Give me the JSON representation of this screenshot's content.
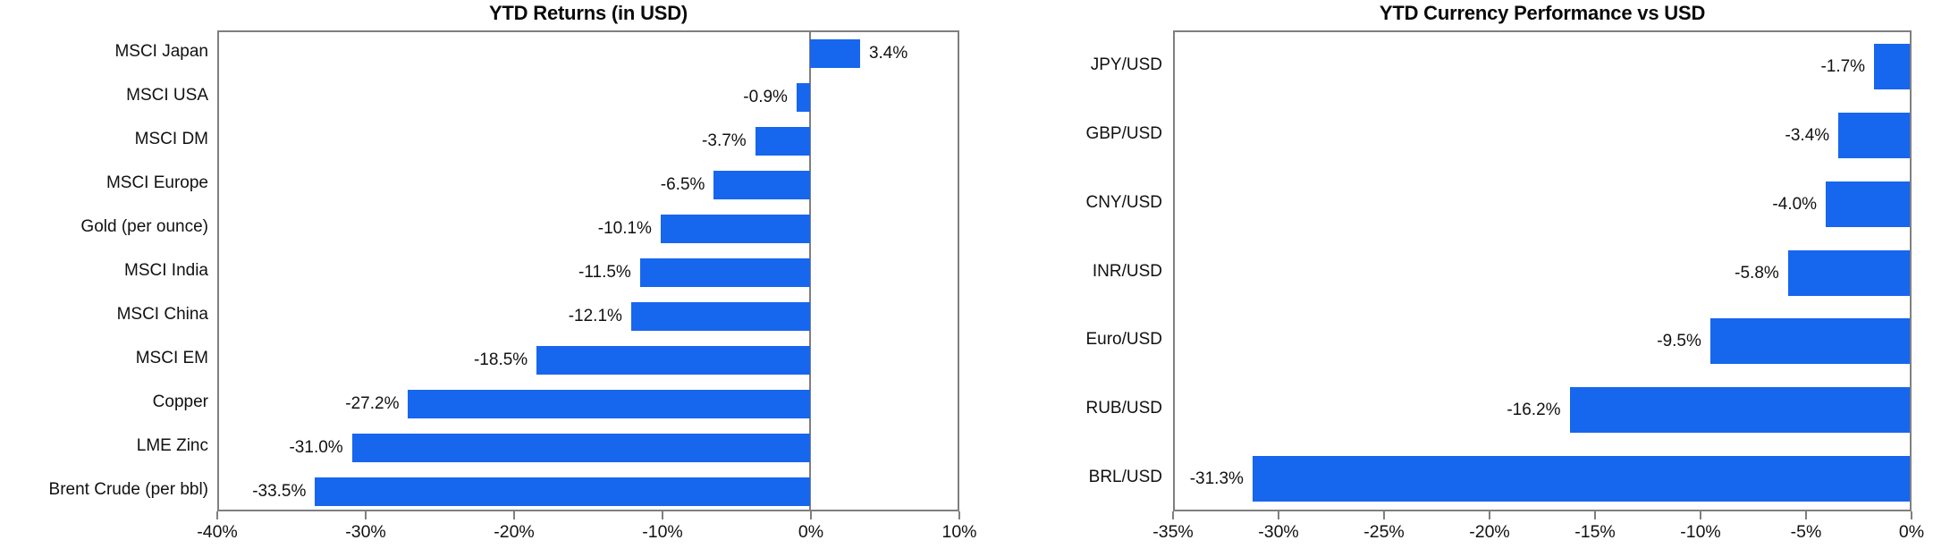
{
  "figure": {
    "background": "#ffffff",
    "text_color": "#111111",
    "axis_color": "#7f7f7f"
  },
  "chart_data": [
    {
      "type": "bar",
      "orientation": "horizontal",
      "title": "YTD Returns (in USD)",
      "categories": [
        "MSCI Japan",
        "MSCI USA",
        "MSCI DM",
        "MSCI Europe",
        "Gold (per ounce)",
        "MSCI India",
        "MSCI China",
        "MSCI EM",
        "Copper",
        "LME Zinc",
        "Brent Crude (per bbl)"
      ],
      "values": [
        3.4,
        -0.9,
        -3.7,
        -6.5,
        -10.1,
        -11.5,
        -12.1,
        -18.5,
        -27.2,
        -31.0,
        -33.5
      ],
      "data_labels": [
        "3.4%",
        "-0.9%",
        "-3.7%",
        "-6.5%",
        "-10.1%",
        "-11.5%",
        "-12.1%",
        "-18.5%",
        "-27.2%",
        "-31.0%",
        "-33.5%"
      ],
      "xlim": [
        -40,
        10
      ],
      "x_tick_values": [
        -40,
        -30,
        -20,
        -10,
        0,
        10
      ],
      "x_ticks": [
        "-40%",
        "-30%",
        "-20%",
        "-10%",
        "0%",
        "10%"
      ],
      "bar_color": "#1766ee",
      "grid": false,
      "legend": null,
      "zero_baseline": true
    },
    {
      "type": "bar",
      "orientation": "horizontal",
      "title": "YTD Currency Performance vs USD",
      "categories": [
        "JPY/USD",
        "GBP/USD",
        "CNY/USD",
        "INR/USD",
        "Euro/USD",
        "RUB/USD",
        "BRL/USD"
      ],
      "values": [
        -1.7,
        -3.4,
        -4.0,
        -5.8,
        -9.5,
        -16.2,
        -31.3
      ],
      "data_labels": [
        "-1.7%",
        "-3.4%",
        "-4.0%",
        "-5.8%",
        "-9.5%",
        "-16.2%",
        "-31.3%"
      ],
      "xlim": [
        -35,
        0
      ],
      "x_tick_values": [
        -35,
        -30,
        -25,
        -20,
        -15,
        -10,
        -5,
        0
      ],
      "x_ticks": [
        "-35%",
        "-30%",
        "-25%",
        "-20%",
        "-15%",
        "-10%",
        "-5%",
        "0%"
      ],
      "bar_color": "#1766ee",
      "grid": false,
      "legend": null,
      "zero_baseline": false
    }
  ]
}
